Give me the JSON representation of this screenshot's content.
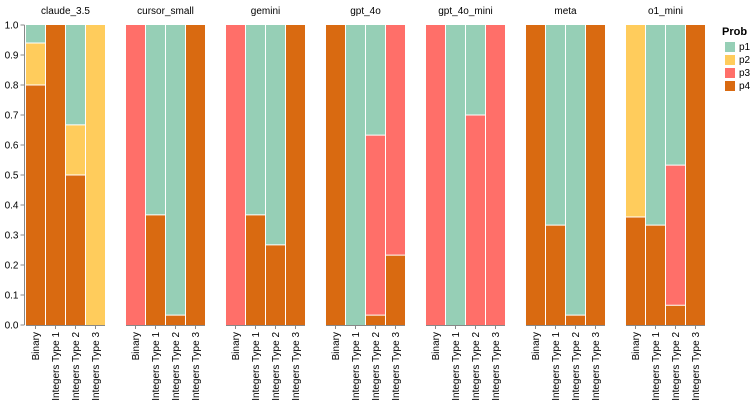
{
  "chart_data": {
    "type": "bar",
    "stacked": true,
    "normalized": true,
    "ylim": [
      0,
      1
    ],
    "yticks": [
      "0.0",
      "0.1",
      "0.2",
      "0.3",
      "0.4",
      "0.5",
      "0.6",
      "0.7",
      "0.8",
      "0.9",
      "1.0"
    ],
    "categories": [
      "Binary",
      "Integers Type 1",
      "Integers Type 2",
      "Integers Type 3"
    ],
    "series_order": [
      "p4",
      "p3",
      "p2",
      "p1"
    ],
    "colors": {
      "p1": "#96cfb6",
      "p2": "#ffcc5c",
      "p3": "#ff6f69",
      "p4": "#d96a11"
    },
    "legend": {
      "title": "Prob",
      "entries": [
        {
          "key": "p1",
          "label": "p1"
        },
        {
          "key": "p2",
          "label": "p2"
        },
        {
          "key": "p3",
          "label": "p3"
        },
        {
          "key": "p4",
          "label": "p4"
        }
      ]
    },
    "facets": [
      {
        "title": "claude_3.5",
        "bars": [
          {
            "p1": 0.06,
            "p2": 0.14,
            "p3": 0,
            "p4": 0.8
          },
          {
            "p1": 0,
            "p2": 0,
            "p3": 0,
            "p4": 1.0
          },
          {
            "p1": 0.333,
            "p2": 0.167,
            "p3": 0,
            "p4": 0.5
          },
          {
            "p1": 0,
            "p2": 1.0,
            "p3": 0,
            "p4": 0
          }
        ]
      },
      {
        "title": "cursor_small",
        "bars": [
          {
            "p1": 0,
            "p2": 0,
            "p3": 1.0,
            "p4": 0
          },
          {
            "p1": 0.633,
            "p2": 0,
            "p3": 0,
            "p4": 0.367
          },
          {
            "p1": 0.967,
            "p2": 0,
            "p3": 0,
            "p4": 0.033
          },
          {
            "p1": 0,
            "p2": 0,
            "p3": 0,
            "p4": 1.0
          }
        ]
      },
      {
        "title": "gemini",
        "bars": [
          {
            "p1": 0,
            "p2": 0,
            "p3": 1.0,
            "p4": 0
          },
          {
            "p1": 0.633,
            "p2": 0,
            "p3": 0,
            "p4": 0.367
          },
          {
            "p1": 0.733,
            "p2": 0,
            "p3": 0,
            "p4": 0.267
          },
          {
            "p1": 0,
            "p2": 0,
            "p3": 0,
            "p4": 1.0
          }
        ]
      },
      {
        "title": "gpt_4o",
        "bars": [
          {
            "p1": 0,
            "p2": 0,
            "p3": 0,
            "p4": 1.0
          },
          {
            "p1": 1.0,
            "p2": 0,
            "p3": 0,
            "p4": 0
          },
          {
            "p1": 0.367,
            "p2": 0,
            "p3": 0.6,
            "p4": 0.033
          },
          {
            "p1": 0,
            "p2": 0,
            "p3": 0.767,
            "p4": 0.233
          }
        ]
      },
      {
        "title": "gpt_4o_mini",
        "bars": [
          {
            "p1": 0,
            "p2": 0,
            "p3": 1.0,
            "p4": 0
          },
          {
            "p1": 1.0,
            "p2": 0,
            "p3": 0,
            "p4": 0
          },
          {
            "p1": 0.3,
            "p2": 0,
            "p3": 0.7,
            "p4": 0
          },
          {
            "p1": 0,
            "p2": 0,
            "p3": 1.0,
            "p4": 0
          }
        ]
      },
      {
        "title": "meta",
        "bars": [
          {
            "p1": 0,
            "p2": 0,
            "p3": 0,
            "p4": 1.0
          },
          {
            "p1": 0.667,
            "p2": 0,
            "p3": 0,
            "p4": 0.333
          },
          {
            "p1": 0.967,
            "p2": 0,
            "p3": 0,
            "p4": 0.033
          },
          {
            "p1": 0,
            "p2": 0,
            "p3": 0,
            "p4": 1.0
          }
        ]
      },
      {
        "title": "o1_mini",
        "bars": [
          {
            "p1": 0,
            "p2": 0.64,
            "p3": 0,
            "p4": 0.36
          },
          {
            "p1": 0.667,
            "p2": 0,
            "p3": 0,
            "p4": 0.333
          },
          {
            "p1": 0.467,
            "p2": 0,
            "p3": 0.467,
            "p4": 0.066
          },
          {
            "p1": 0,
            "p2": 0,
            "p3": 0,
            "p4": 1.0
          }
        ]
      }
    ]
  }
}
